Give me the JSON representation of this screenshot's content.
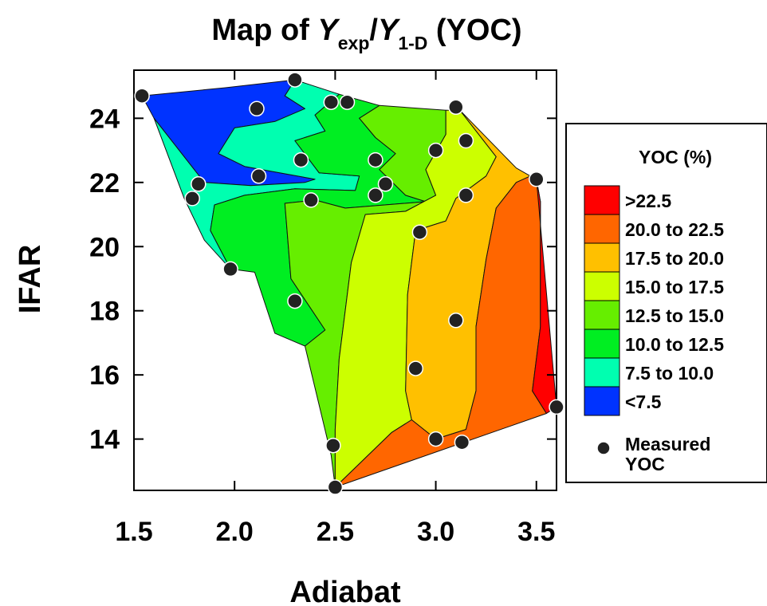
{
  "chart_data": {
    "type": "contour",
    "title": {
      "prefix": "Map of ",
      "y1": "Y",
      "sub1": "exp",
      "slash": "/",
      "y2": "Y",
      "sub2": "1-D",
      "suffix": " (YOC)"
    },
    "xlabel": "Adiabat",
    "ylabel": "IFAR",
    "xlim": [
      1.5,
      3.6
    ],
    "ylim": [
      12.4,
      25.5
    ],
    "x_ticks": [
      "1.5",
      "2.0",
      "2.5",
      "3.0",
      "3.5"
    ],
    "y_ticks": [
      "14",
      "16",
      "18",
      "20",
      "22",
      "24"
    ],
    "legend": {
      "title": "YOC (%)",
      "placement": "right",
      "entries": [
        {
          "label": ">22.5",
          "color": "#ff0000"
        },
        {
          "label": "20.0 to 22.5",
          "color": "#ff6600"
        },
        {
          "label": "17.5 to 20.0",
          "color": "#ffc000"
        },
        {
          "label": "15.0 to 17.5",
          "color": "#ccff00"
        },
        {
          "label": "12.5 to 15.0",
          "color": "#66ee00"
        },
        {
          "label": "10.0 to 12.5",
          "color": "#00ee22"
        },
        {
          "label": "7.5 to 10.0",
          "color": "#00ffb0"
        },
        {
          "label": "<7.5",
          "color": "#0033ff"
        }
      ],
      "marker_label_line1": "Measured",
      "marker_label_line2": "YOC"
    },
    "measured_points": [
      {
        "x": 1.54,
        "y": 24.7
      },
      {
        "x": 2.3,
        "y": 25.2
      },
      {
        "x": 2.11,
        "y": 24.3
      },
      {
        "x": 2.48,
        "y": 24.5
      },
      {
        "x": 2.56,
        "y": 24.5
      },
      {
        "x": 3.1,
        "y": 24.35
      },
      {
        "x": 2.33,
        "y": 22.7
      },
      {
        "x": 2.7,
        "y": 22.7
      },
      {
        "x": 3.0,
        "y": 23.0
      },
      {
        "x": 3.15,
        "y": 23.3
      },
      {
        "x": 2.12,
        "y": 22.2
      },
      {
        "x": 1.82,
        "y": 21.95
      },
      {
        "x": 1.79,
        "y": 21.5
      },
      {
        "x": 2.38,
        "y": 21.45
      },
      {
        "x": 2.7,
        "y": 21.6
      },
      {
        "x": 2.75,
        "y": 21.95
      },
      {
        "x": 3.15,
        "y": 21.6
      },
      {
        "x": 3.5,
        "y": 22.1
      },
      {
        "x": 2.92,
        "y": 20.45
      },
      {
        "x": 1.98,
        "y": 19.3
      },
      {
        "x": 2.3,
        "y": 18.3
      },
      {
        "x": 3.1,
        "y": 17.7
      },
      {
        "x": 2.9,
        "y": 16.2
      },
      {
        "x": 3.6,
        "y": 15.0
      },
      {
        "x": 2.49,
        "y": 13.8
      },
      {
        "x": 3.0,
        "y": 14.0
      },
      {
        "x": 3.13,
        "y": 13.9
      },
      {
        "x": 2.5,
        "y": 12.5
      }
    ],
    "regions": [
      {
        "level": "<7.5",
        "color": "#0033ff",
        "points": [
          [
            1.54,
            24.7
          ],
          [
            1.95,
            24.95
          ],
          [
            2.3,
            25.2
          ],
          [
            2.25,
            24.7
          ],
          [
            2.35,
            24.3
          ],
          [
            2.2,
            23.9
          ],
          [
            2.0,
            23.7
          ],
          [
            1.92,
            22.9
          ],
          [
            2.05,
            22.5
          ],
          [
            2.4,
            22.1
          ],
          [
            2.35,
            22.0
          ],
          [
            2.08,
            21.9
          ],
          [
            1.85,
            22.0
          ],
          [
            1.6,
            24.0
          ]
        ]
      },
      {
        "level": "7.5 to 10.0",
        "color": "#00ffb0",
        "points": [
          [
            2.3,
            25.2
          ],
          [
            2.52,
            24.75
          ],
          [
            2.4,
            24.1
          ],
          [
            2.45,
            23.6
          ],
          [
            2.3,
            23.3
          ],
          [
            2.42,
            22.3
          ],
          [
            2.62,
            22.2
          ],
          [
            2.6,
            21.75
          ],
          [
            2.3,
            21.8
          ],
          [
            2.05,
            21.6
          ],
          [
            1.9,
            21.3
          ],
          [
            1.88,
            20.5
          ],
          [
            1.98,
            19.3
          ],
          [
            1.85,
            20.2
          ],
          [
            1.75,
            21.5
          ],
          [
            1.6,
            24.0
          ],
          [
            1.85,
            22.0
          ],
          [
            2.08,
            21.9
          ],
          [
            2.35,
            22.0
          ],
          [
            2.4,
            22.1
          ],
          [
            2.05,
            22.5
          ],
          [
            1.92,
            22.9
          ],
          [
            2.0,
            23.7
          ],
          [
            2.2,
            23.9
          ],
          [
            2.35,
            24.3
          ],
          [
            2.25,
            24.7
          ]
        ]
      },
      {
        "level": "10.0 to 12.5",
        "color": "#00ee22",
        "points": [
          [
            2.52,
            24.75
          ],
          [
            2.72,
            24.4
          ],
          [
            2.62,
            24.0
          ],
          [
            2.7,
            23.4
          ],
          [
            2.8,
            22.9
          ],
          [
            2.72,
            22.4
          ],
          [
            2.85,
            21.6
          ],
          [
            2.95,
            21.4
          ],
          [
            2.55,
            21.2
          ],
          [
            2.4,
            21.45
          ],
          [
            2.25,
            21.35
          ],
          [
            2.28,
            19.0
          ],
          [
            2.45,
            17.4
          ],
          [
            2.35,
            16.9
          ],
          [
            2.2,
            17.3
          ],
          [
            2.1,
            19.2
          ],
          [
            1.98,
            19.3
          ],
          [
            1.88,
            20.5
          ],
          [
            1.9,
            21.3
          ],
          [
            2.05,
            21.6
          ],
          [
            2.3,
            21.8
          ],
          [
            2.6,
            21.75
          ],
          [
            2.62,
            22.2
          ],
          [
            2.42,
            22.3
          ],
          [
            2.3,
            23.3
          ],
          [
            2.45,
            23.6
          ],
          [
            2.4,
            24.1
          ]
        ]
      },
      {
        "level": "12.5 to 15.0",
        "color": "#66ee00",
        "points": [
          [
            2.72,
            24.4
          ],
          [
            3.05,
            24.25
          ],
          [
            3.05,
            23.5
          ],
          [
            2.95,
            22.4
          ],
          [
            3.0,
            21.6
          ],
          [
            2.85,
            21.1
          ],
          [
            2.65,
            21.0
          ],
          [
            2.58,
            19.5
          ],
          [
            2.52,
            16.5
          ],
          [
            2.5,
            14.3
          ],
          [
            2.5,
            12.5
          ],
          [
            2.48,
            13.5
          ],
          [
            2.35,
            16.9
          ],
          [
            2.45,
            17.4
          ],
          [
            2.28,
            19.0
          ],
          [
            2.25,
            21.35
          ],
          [
            2.4,
            21.45
          ],
          [
            2.55,
            21.2
          ],
          [
            2.95,
            21.4
          ],
          [
            2.85,
            21.6
          ],
          [
            2.72,
            22.4
          ],
          [
            2.8,
            22.9
          ],
          [
            2.7,
            23.4
          ],
          [
            2.62,
            24.0
          ]
        ]
      },
      {
        "level": "15.0 to 17.5",
        "color": "#ccff00",
        "points": [
          [
            3.05,
            24.25
          ],
          [
            3.12,
            24.25
          ],
          [
            3.3,
            22.8
          ],
          [
            3.25,
            22.2
          ],
          [
            3.1,
            21.5
          ],
          [
            3.05,
            20.8
          ],
          [
            2.9,
            20.5
          ],
          [
            2.86,
            18.5
          ],
          [
            2.85,
            15.5
          ],
          [
            2.88,
            14.6
          ],
          [
            2.78,
            14.2
          ],
          [
            2.5,
            12.5
          ],
          [
            2.5,
            14.3
          ],
          [
            2.52,
            16.5
          ],
          [
            2.58,
            19.5
          ],
          [
            2.65,
            21.0
          ],
          [
            2.85,
            21.1
          ],
          [
            3.0,
            21.6
          ],
          [
            2.95,
            22.4
          ],
          [
            3.05,
            23.5
          ]
        ]
      },
      {
        "level": "17.5 to 20.0",
        "color": "#ffc000",
        "points": [
          [
            3.12,
            24.25
          ],
          [
            3.4,
            22.45
          ],
          [
            3.47,
            22.2
          ],
          [
            3.4,
            22.0
          ],
          [
            3.3,
            21.2
          ],
          [
            3.25,
            19.6
          ],
          [
            3.2,
            17.5
          ],
          [
            3.2,
            15.5
          ],
          [
            3.15,
            14.3
          ],
          [
            3.0,
            14.0
          ],
          [
            2.88,
            14.6
          ],
          [
            2.85,
            15.5
          ],
          [
            2.86,
            18.5
          ],
          [
            2.9,
            20.5
          ],
          [
            3.05,
            20.8
          ],
          [
            3.1,
            21.5
          ],
          [
            3.25,
            22.2
          ],
          [
            3.3,
            22.8
          ]
        ]
      },
      {
        "level": "20.0 to 22.5",
        "color": "#ff6600",
        "points": [
          [
            3.47,
            22.2
          ],
          [
            3.5,
            22.1
          ],
          [
            3.52,
            21.4
          ],
          [
            3.52,
            17.5
          ],
          [
            3.48,
            15.5
          ],
          [
            3.55,
            14.8
          ],
          [
            2.5,
            12.5
          ],
          [
            2.78,
            14.2
          ],
          [
            2.88,
            14.6
          ],
          [
            3.0,
            14.0
          ],
          [
            3.15,
            14.3
          ],
          [
            3.2,
            15.5
          ],
          [
            3.2,
            17.5
          ],
          [
            3.25,
            19.6
          ],
          [
            3.3,
            21.2
          ],
          [
            3.4,
            22.0
          ]
        ]
      },
      {
        "level": ">22.5",
        "color": "#ff0000",
        "points": [
          [
            3.5,
            22.1
          ],
          [
            3.6,
            15.0
          ],
          [
            3.55,
            14.8
          ],
          [
            3.48,
            15.5
          ],
          [
            3.52,
            17.5
          ],
          [
            3.52,
            21.4
          ]
        ]
      }
    ]
  }
}
